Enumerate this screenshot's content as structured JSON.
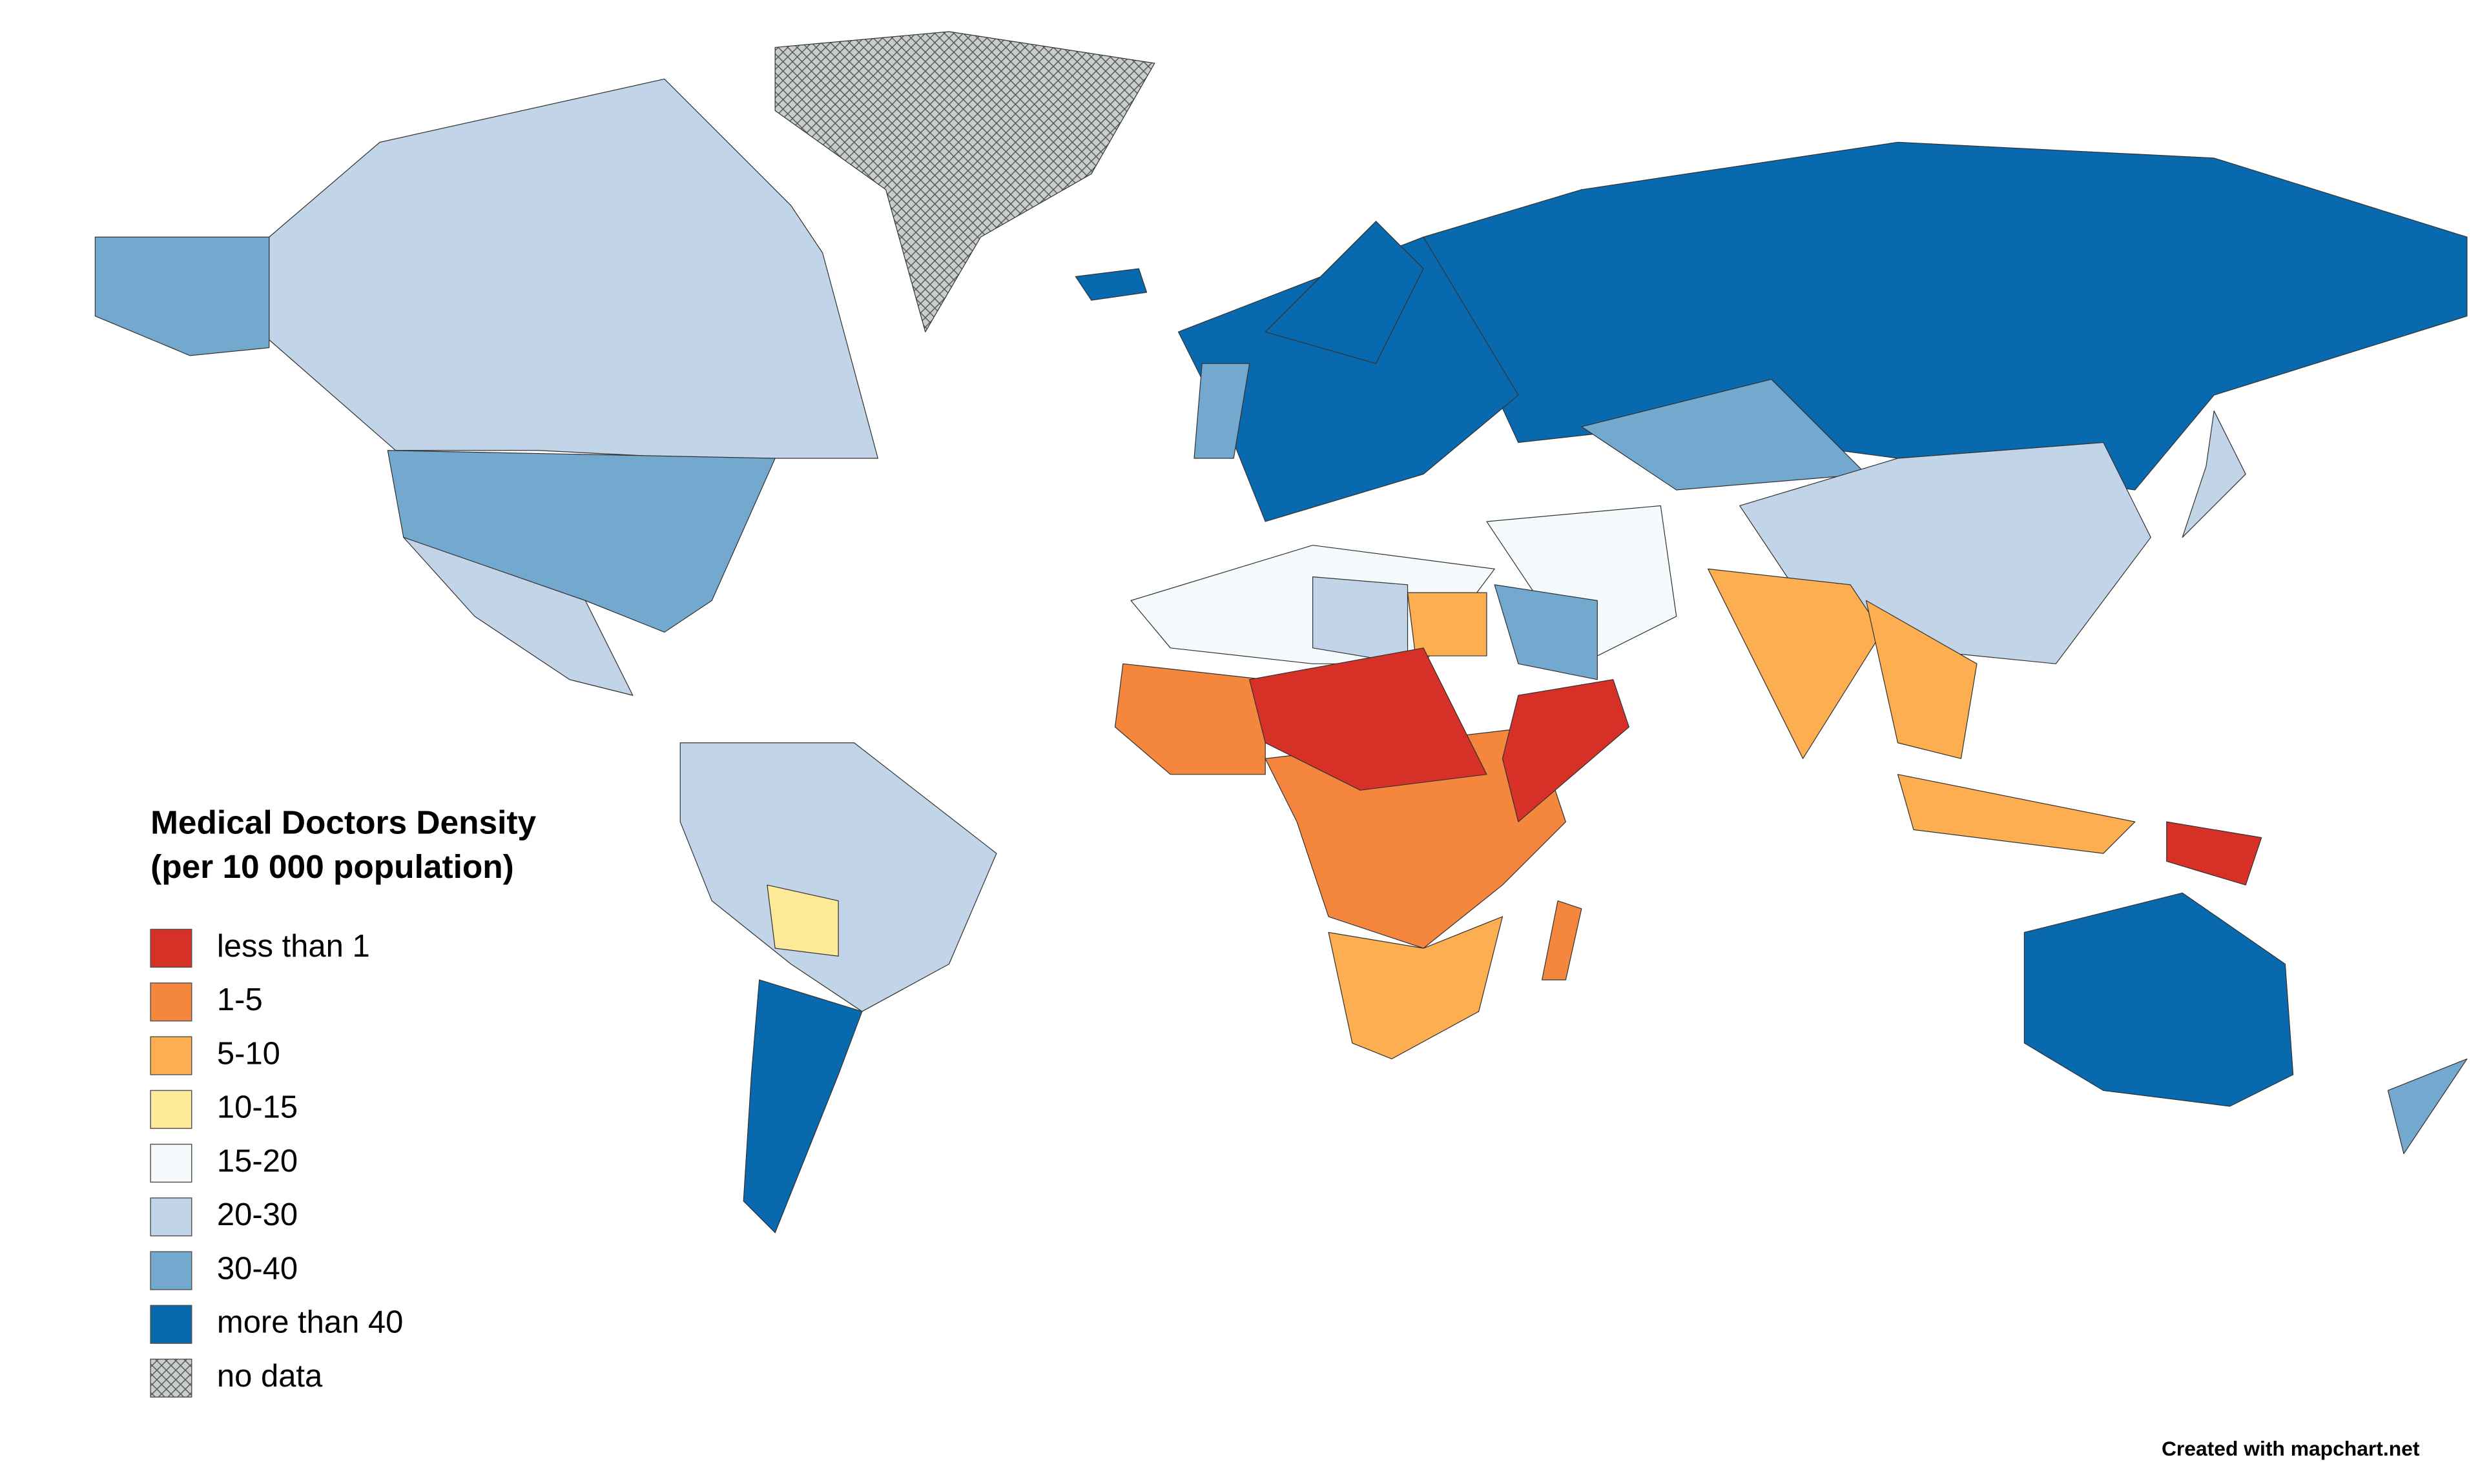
{
  "legend": {
    "title": [
      "Medical Doctors Density",
      "(per 10 000 population)"
    ],
    "items": [
      {
        "label": "less than 1",
        "color": "#d73027"
      },
      {
        "label": "1-5",
        "color": "#f4873d"
      },
      {
        "label": "5-10",
        "color": "#fdae50"
      },
      {
        "label": "10-15",
        "color": "#fee999"
      },
      {
        "label": "15-20",
        "color": "#f5fbfc"
      },
      {
        "label": "20-30",
        "color": "#c2d5e8"
      },
      {
        "label": "30-40",
        "color": "#74a9cf"
      },
      {
        "label": "more than 40",
        "color": "#0869ae"
      },
      {
        "label": "no data",
        "color": "#c8cdcd"
      }
    ]
  },
  "credit": "Created with mapchart.net"
}
